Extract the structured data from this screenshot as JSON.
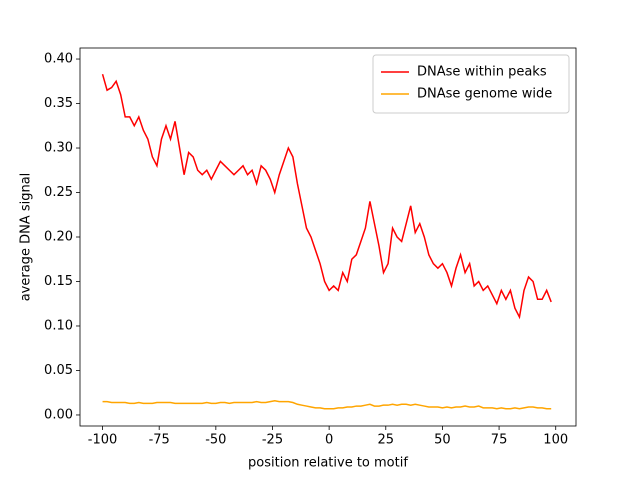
{
  "chart_data": {
    "type": "line",
    "xlabel": "position relative to motif",
    "ylabel": "average DNA signal",
    "x": [
      -100,
      -98,
      -96,
      -94,
      -92,
      -90,
      -88,
      -86,
      -84,
      -82,
      -80,
      -78,
      -76,
      -74,
      -72,
      -70,
      -68,
      -66,
      -64,
      -62,
      -60,
      -58,
      -56,
      -54,
      -52,
      -50,
      -48,
      -46,
      -44,
      -42,
      -40,
      -38,
      -36,
      -34,
      -32,
      -30,
      -28,
      -26,
      -24,
      -22,
      -20,
      -18,
      -16,
      -14,
      -12,
      -10,
      -8,
      -6,
      -4,
      -2,
      0,
      2,
      4,
      6,
      8,
      10,
      12,
      14,
      16,
      18,
      20,
      22,
      24,
      26,
      28,
      30,
      32,
      34,
      36,
      38,
      40,
      42,
      44,
      46,
      48,
      50,
      52,
      54,
      56,
      58,
      60,
      62,
      64,
      66,
      68,
      70,
      72,
      74,
      76,
      78,
      80,
      82,
      84,
      86,
      88,
      90,
      92,
      94,
      96,
      98
    ],
    "series": [
      {
        "name": "DNAse within peaks",
        "color": "#ff0000",
        "values": [
          0.383,
          0.365,
          0.368,
          0.375,
          0.36,
          0.335,
          0.335,
          0.325,
          0.335,
          0.32,
          0.31,
          0.29,
          0.28,
          0.31,
          0.325,
          0.31,
          0.33,
          0.3,
          0.27,
          0.295,
          0.29,
          0.275,
          0.27,
          0.275,
          0.265,
          0.275,
          0.285,
          0.28,
          0.275,
          0.27,
          0.275,
          0.28,
          0.27,
          0.275,
          0.26,
          0.28,
          0.275,
          0.265,
          0.25,
          0.27,
          0.285,
          0.3,
          0.29,
          0.26,
          0.235,
          0.21,
          0.2,
          0.185,
          0.17,
          0.15,
          0.14,
          0.145,
          0.14,
          0.16,
          0.15,
          0.175,
          0.18,
          0.195,
          0.21,
          0.24,
          0.215,
          0.19,
          0.16,
          0.17,
          0.21,
          0.2,
          0.195,
          0.215,
          0.235,
          0.205,
          0.215,
          0.2,
          0.18,
          0.17,
          0.165,
          0.17,
          0.16,
          0.145,
          0.165,
          0.18,
          0.16,
          0.17,
          0.145,
          0.15,
          0.14,
          0.145,
          0.135,
          0.125,
          0.14,
          0.13,
          0.14,
          0.12,
          0.11,
          0.14,
          0.155,
          0.15,
          0.13,
          0.13,
          0.14,
          0.127
        ]
      },
      {
        "name": "DNAse genome wide",
        "color": "#ffa500",
        "values": [
          0.015,
          0.015,
          0.014,
          0.014,
          0.014,
          0.014,
          0.013,
          0.013,
          0.014,
          0.013,
          0.013,
          0.013,
          0.014,
          0.014,
          0.014,
          0.014,
          0.013,
          0.013,
          0.013,
          0.013,
          0.013,
          0.013,
          0.013,
          0.014,
          0.013,
          0.013,
          0.014,
          0.014,
          0.013,
          0.014,
          0.014,
          0.014,
          0.014,
          0.014,
          0.015,
          0.014,
          0.014,
          0.015,
          0.016,
          0.015,
          0.015,
          0.015,
          0.014,
          0.012,
          0.011,
          0.01,
          0.009,
          0.008,
          0.008,
          0.007,
          0.007,
          0.007,
          0.008,
          0.008,
          0.009,
          0.009,
          0.01,
          0.01,
          0.011,
          0.012,
          0.01,
          0.01,
          0.011,
          0.011,
          0.012,
          0.011,
          0.012,
          0.012,
          0.011,
          0.012,
          0.011,
          0.01,
          0.009,
          0.009,
          0.009,
          0.008,
          0.009,
          0.008,
          0.009,
          0.009,
          0.01,
          0.009,
          0.009,
          0.01,
          0.008,
          0.008,
          0.008,
          0.007,
          0.008,
          0.007,
          0.007,
          0.008,
          0.007,
          0.008,
          0.009,
          0.009,
          0.008,
          0.008,
          0.007,
          0.007
        ]
      }
    ],
    "xlim": [
      -109.95,
      108.95
    ],
    "xticks": [
      -100,
      -75,
      -50,
      -25,
      0,
      25,
      50,
      75,
      100
    ],
    "ylim": [
      -0.0124,
      0.4124
    ],
    "yticks": [
      {
        "value": 0,
        "label": "0.00"
      },
      {
        "value": 0.05,
        "label": "0.05"
      },
      {
        "value": 0.1,
        "label": "0.10"
      },
      {
        "value": 0.15,
        "label": "0.15"
      },
      {
        "value": 0.2,
        "label": "0.20"
      },
      {
        "value": 0.25,
        "label": "0.25"
      },
      {
        "value": 0.3,
        "label": "0.30"
      },
      {
        "value": 0.35,
        "label": "0.35"
      },
      {
        "value": 0.4,
        "label": "0.40"
      }
    ],
    "legend": "upper right",
    "grid": false
  }
}
